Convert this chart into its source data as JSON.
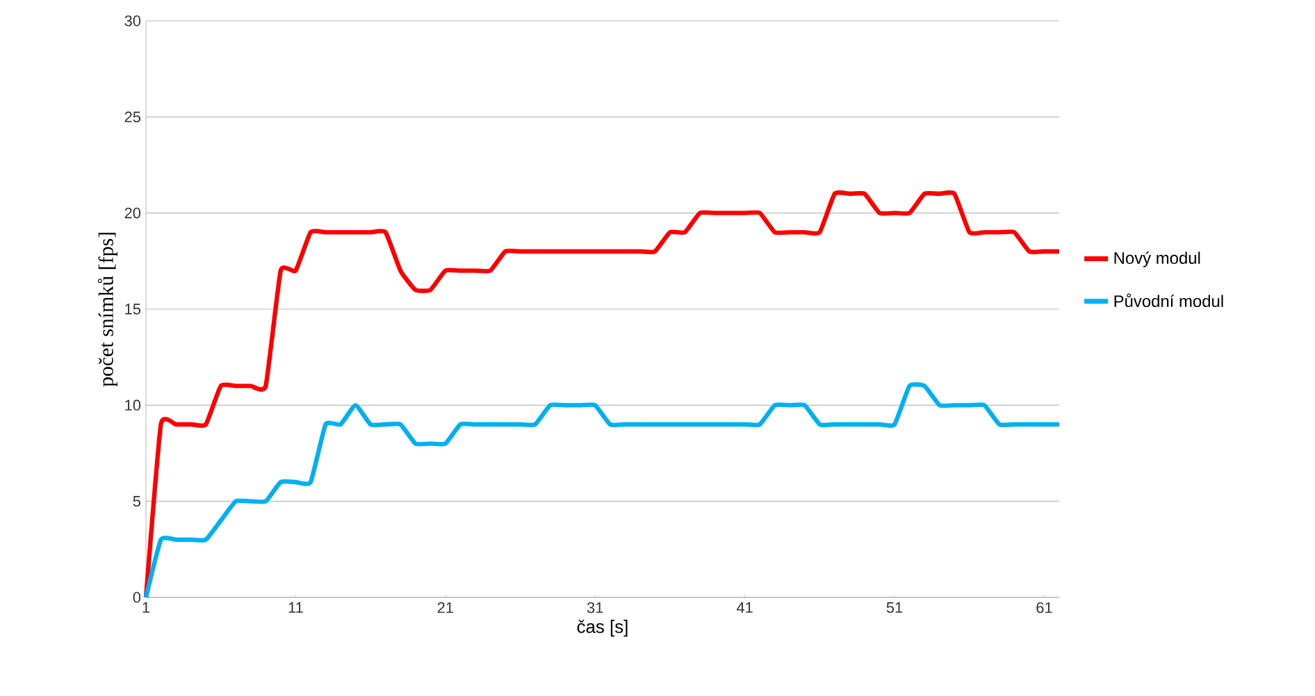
{
  "chart_data": {
    "type": "line",
    "xlabel": "čas [s]",
    "ylabel": "počet snímků [fps]",
    "x": [
      1,
      2,
      3,
      4,
      5,
      6,
      7,
      8,
      9,
      10,
      11,
      12,
      13,
      14,
      15,
      16,
      17,
      18,
      19,
      20,
      21,
      22,
      23,
      24,
      25,
      26,
      27,
      28,
      29,
      30,
      31,
      32,
      33,
      34,
      35,
      36,
      37,
      38,
      39,
      40,
      41,
      42,
      43,
      44,
      45,
      46,
      47,
      48,
      49,
      50,
      51,
      52,
      53,
      54,
      55,
      56,
      57,
      58,
      59,
      60,
      61,
      62
    ],
    "series": [
      {
        "name": "Nový modul",
        "color": "#ff0000",
        "values": [
          0,
          9,
          9,
          9,
          9,
          11,
          11,
          11,
          11,
          17,
          17,
          19,
          19,
          19,
          19,
          19,
          19,
          17,
          16,
          16,
          17,
          17,
          17,
          17,
          18,
          18,
          18,
          18,
          18,
          18,
          18,
          18,
          18,
          18,
          18,
          19,
          19,
          20,
          20,
          20,
          20,
          20,
          19,
          19,
          19,
          19,
          21,
          21,
          21,
          20,
          20,
          20,
          21,
          21,
          21,
          19,
          19,
          19,
          19,
          18,
          18,
          18
        ]
      },
      {
        "name": "Původní modul",
        "color": "#00b0f0",
        "values": [
          0,
          3,
          3,
          3,
          3,
          4,
          5,
          5,
          5,
          6,
          6,
          6,
          9,
          9,
          10,
          9,
          9,
          9,
          8,
          8,
          8,
          9,
          9,
          9,
          9,
          9,
          9,
          10,
          10,
          10,
          10,
          9,
          9,
          9,
          9,
          9,
          9,
          9,
          9,
          9,
          9,
          9,
          10,
          10,
          10,
          9,
          9,
          9,
          9,
          9,
          9,
          11,
          11,
          10,
          10,
          10,
          10,
          9,
          9,
          9,
          9,
          9
        ]
      }
    ],
    "xlim": [
      1,
      62
    ],
    "ylim": [
      0,
      30
    ],
    "xticks": [
      1,
      11,
      21,
      31,
      41,
      51,
      61
    ],
    "yticks": [
      0,
      5,
      10,
      15,
      20,
      25,
      30
    ],
    "grid": "y",
    "legend": "right",
    "marker": "none",
    "line_style": "solid"
  }
}
